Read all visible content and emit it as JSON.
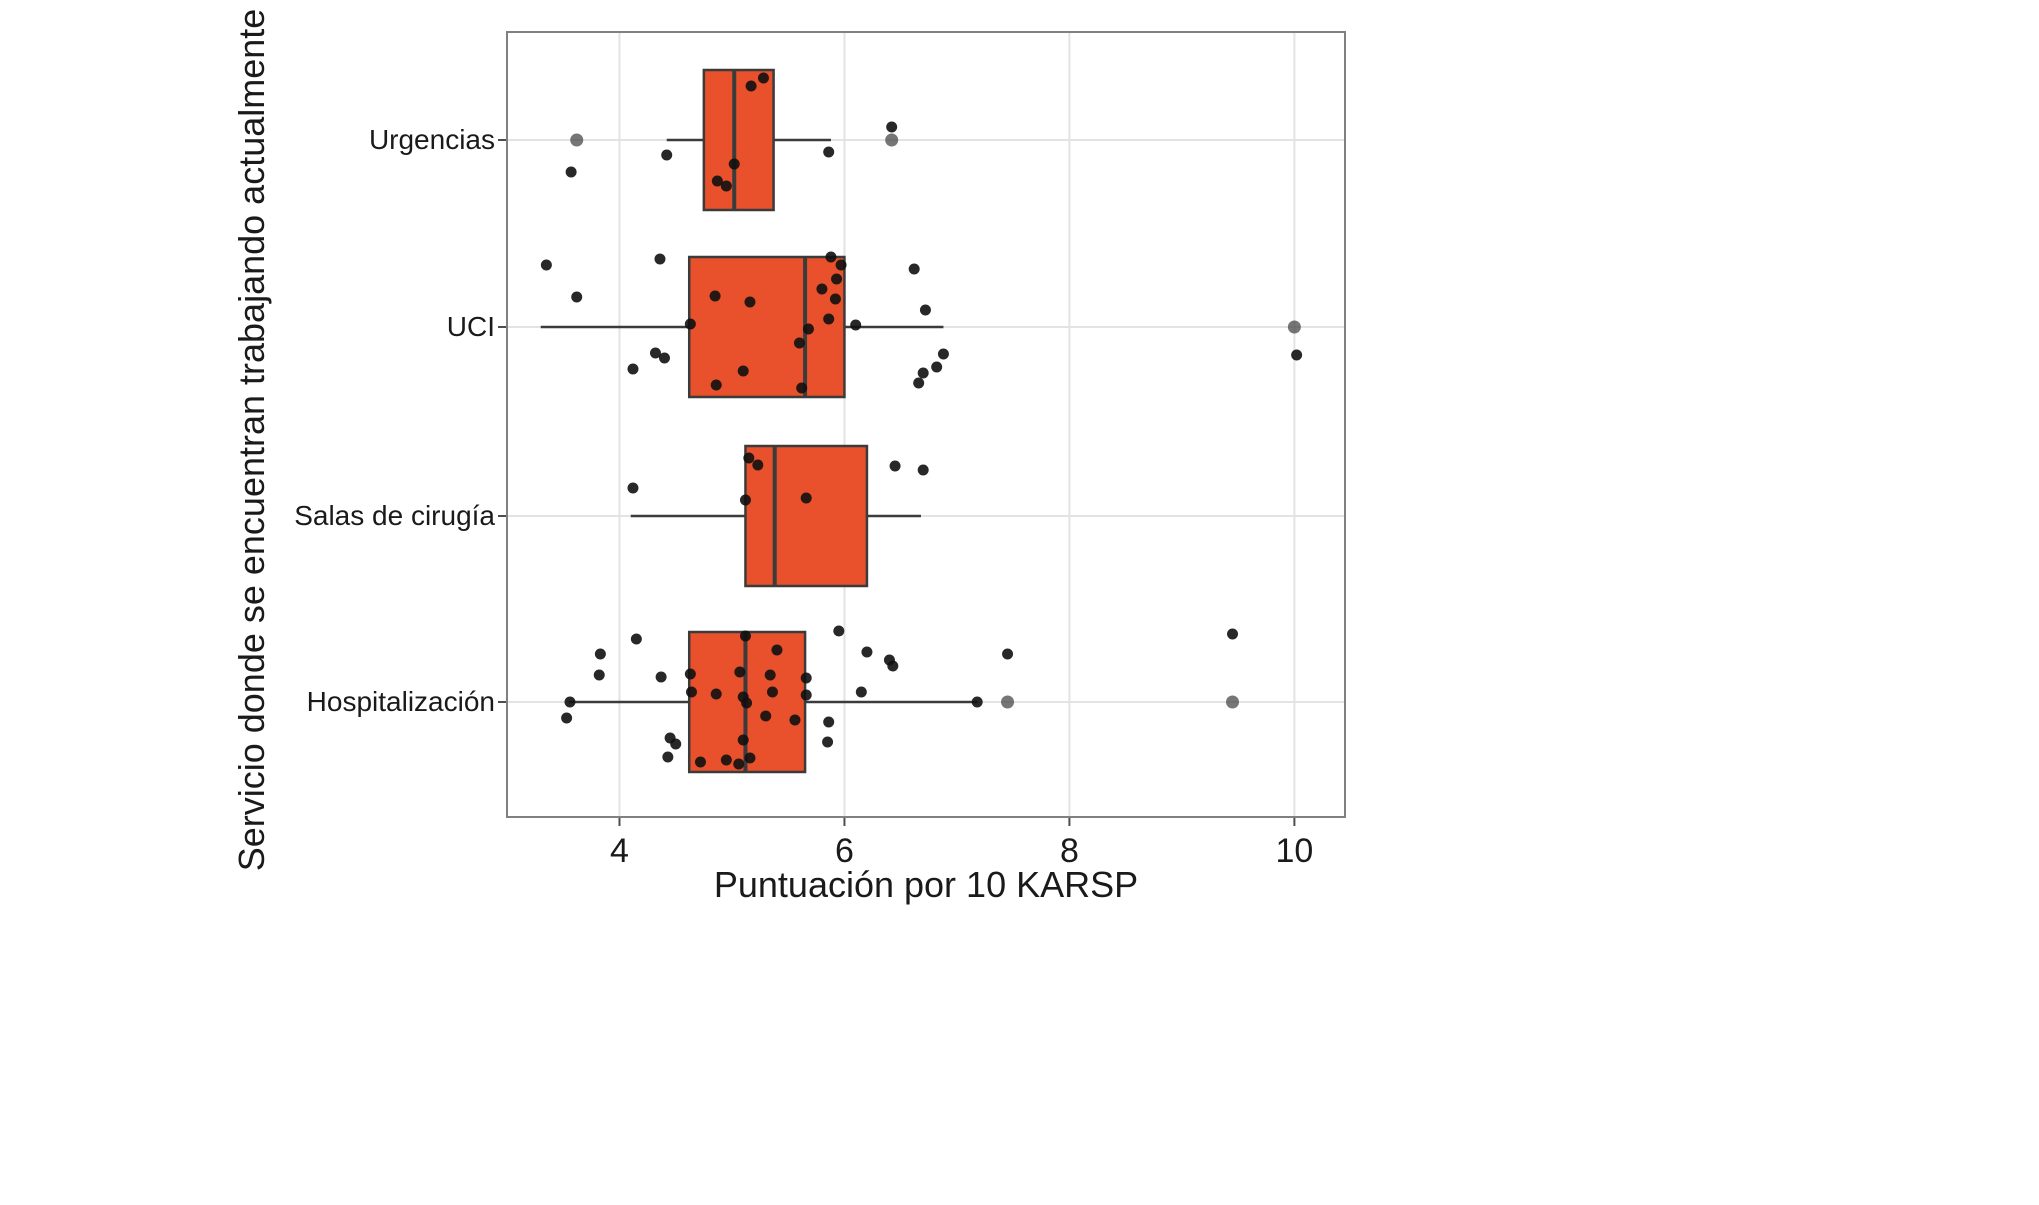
{
  "chart_data": {
    "type": "boxplot",
    "orientation": "horizontal",
    "title": "",
    "xlabel": "Puntuación por 10 KARSP",
    "ylabel": "Servicio donde se encuentran trabajando actualmente",
    "x_ticks": [
      4,
      6,
      8,
      10
    ],
    "xlim": [
      3.0,
      10.45
    ],
    "grid": true,
    "categories": [
      "Urgencias",
      "UCI",
      "Salas de cirugía",
      "Hospitalización"
    ],
    "colors": {
      "box_fill": "#E8512B",
      "box_border": "#3B3B3B",
      "point": "#111111",
      "outlier": "#3C3C3C",
      "grid": "#E3E3E3",
      "panel_border": "#808080",
      "tick": "#4D4D4D",
      "text": "#1A1A1A"
    },
    "boxes": [
      {
        "category": "Urgencias",
        "whisker_low": 4.42,
        "q1": 4.75,
        "median": 5.02,
        "q3": 5.37,
        "whisker_high": 5.88,
        "outliers": [
          3.62,
          6.42
        ],
        "points": [
          [
            5.28,
            -62
          ],
          [
            5.17,
            -54
          ],
          [
            6.42,
            -13
          ],
          [
            4.42,
            15
          ],
          [
            5.86,
            12
          ],
          [
            3.57,
            32
          ],
          [
            4.87,
            41
          ],
          [
            4.95,
            46
          ],
          [
            5.02,
            24
          ]
        ]
      },
      {
        "category": "UCI",
        "whisker_low": 3.3,
        "q1": 4.62,
        "median": 5.65,
        "q3": 6.0,
        "whisker_high": 6.88,
        "outliers": [
          10.0
        ],
        "points": [
          [
            3.35,
            -62
          ],
          [
            4.36,
            -68
          ],
          [
            5.88,
            -70
          ],
          [
            5.97,
            -62
          ],
          [
            5.93,
            -48
          ],
          [
            6.62,
            -58
          ],
          [
            3.62,
            -30
          ],
          [
            4.85,
            -31
          ],
          [
            5.16,
            -25
          ],
          [
            5.8,
            -38
          ],
          [
            5.92,
            -28
          ],
          [
            6.72,
            -17
          ],
          [
            4.63,
            -3
          ],
          [
            5.68,
            2
          ],
          [
            5.86,
            -8
          ],
          [
            6.1,
            -2
          ],
          [
            5.6,
            16
          ],
          [
            4.32,
            26
          ],
          [
            4.4,
            31
          ],
          [
            6.88,
            27
          ],
          [
            10.02,
            28
          ],
          [
            4.12,
            42
          ],
          [
            5.1,
            44
          ],
          [
            6.7,
            46
          ],
          [
            6.82,
            40
          ],
          [
            4.86,
            58
          ],
          [
            5.62,
            61
          ],
          [
            6.66,
            56
          ]
        ]
      },
      {
        "category": "Salas de cirugía",
        "whisker_low": 4.1,
        "q1": 5.12,
        "median": 5.38,
        "q3": 6.2,
        "whisker_high": 6.68,
        "outliers": [],
        "points": [
          [
            5.15,
            -58
          ],
          [
            5.23,
            -51
          ],
          [
            6.45,
            -50
          ],
          [
            6.7,
            -46
          ],
          [
            4.12,
            -28
          ],
          [
            5.12,
            -16
          ],
          [
            5.66,
            -18
          ]
        ]
      },
      {
        "category": "Hospitalización",
        "whisker_low": 3.55,
        "q1": 4.62,
        "median": 5.12,
        "q3": 5.65,
        "whisker_high": 7.18,
        "outliers": [
          7.45,
          9.45
        ],
        "points": [
          [
            5.12,
            -66
          ],
          [
            4.15,
            -63
          ],
          [
            5.95,
            -71
          ],
          [
            3.83,
            -48
          ],
          [
            5.4,
            -52
          ],
          [
            6.2,
            -50
          ],
          [
            6.4,
            -42
          ],
          [
            6.43,
            -36
          ],
          [
            7.45,
            -48
          ],
          [
            9.45,
            -68
          ],
          [
            3.82,
            -27
          ],
          [
            4.37,
            -25
          ],
          [
            4.63,
            -28
          ],
          [
            5.07,
            -30
          ],
          [
            5.34,
            -27
          ],
          [
            5.66,
            -24
          ],
          [
            4.64,
            -10
          ],
          [
            4.86,
            -8
          ],
          [
            5.1,
            -5
          ],
          [
            5.36,
            -10
          ],
          [
            5.66,
            -7
          ],
          [
            6.15,
            -10
          ],
          [
            3.56,
            0
          ],
          [
            5.13,
            1
          ],
          [
            7.18,
            0
          ],
          [
            3.53,
            16
          ],
          [
            5.3,
            14
          ],
          [
            5.56,
            18
          ],
          [
            5.86,
            20
          ],
          [
            4.45,
            36
          ],
          [
            4.5,
            42
          ],
          [
            5.1,
            38
          ],
          [
            5.85,
            40
          ],
          [
            4.43,
            55
          ],
          [
            4.72,
            60
          ],
          [
            4.95,
            58
          ],
          [
            5.06,
            62
          ],
          [
            5.16,
            56
          ]
        ]
      }
    ]
  }
}
